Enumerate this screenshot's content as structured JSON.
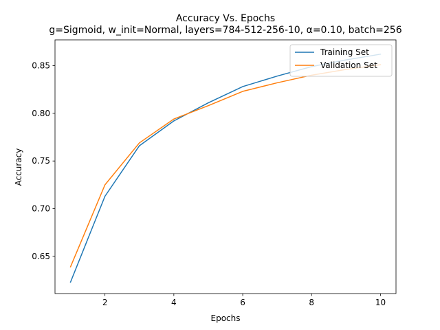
{
  "chart_data": {
    "type": "line",
    "title": "Accuracy Vs. Epochs",
    "subtitle": "g=Sigmoid, w_init=Normal, layers=784-512-256-10, α=0.10, batch=256",
    "xlabel": "Epochs",
    "ylabel": "Accuracy",
    "xlim": [
      0.55,
      10.45
    ],
    "ylim": [
      0.611,
      0.877
    ],
    "xticks": [
      2,
      4,
      6,
      8,
      10
    ],
    "yticks": [
      0.65,
      0.7,
      0.75,
      0.8,
      0.85
    ],
    "xtick_labels": [
      "2",
      "4",
      "6",
      "8",
      "10"
    ],
    "ytick_labels": [
      "0.65",
      "0.70",
      "0.75",
      "0.80",
      "0.85"
    ],
    "grid": false,
    "legend_position": "top-right",
    "x": [
      1,
      2,
      3,
      4,
      5,
      6,
      7,
      8,
      9,
      10
    ],
    "series": [
      {
        "name": "Training Set",
        "color": "#1f77b4",
        "values": [
          0.623,
          0.713,
          0.766,
          0.792,
          0.811,
          0.828,
          0.839,
          0.849,
          0.856,
          0.862
        ]
      },
      {
        "name": "Validation Set",
        "color": "#ff7f0e",
        "values": [
          0.639,
          0.725,
          0.769,
          0.794,
          0.808,
          0.823,
          0.832,
          0.84,
          0.846,
          0.851
        ]
      }
    ]
  }
}
